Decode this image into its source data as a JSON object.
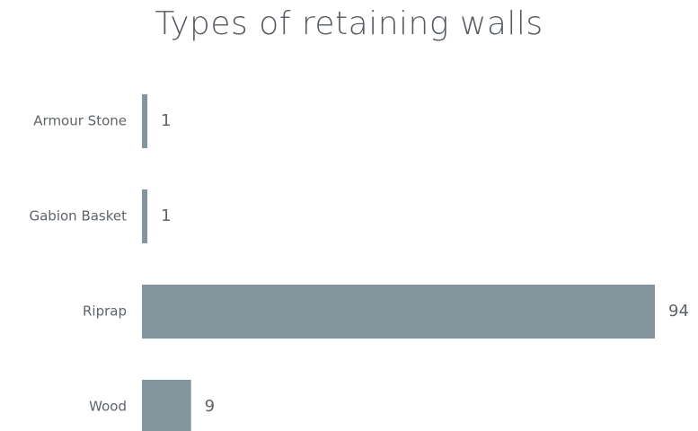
{
  "chart_data": {
    "type": "bar",
    "orientation": "horizontal",
    "title": "Types of retaining walls",
    "categories": [
      "Armour Stone",
      "Gabion Basket",
      "Riprap",
      "Wood"
    ],
    "values": [
      1,
      1,
      94,
      9
    ],
    "xlim": [
      0,
      94
    ],
    "data_labels": true,
    "grid": false,
    "legend": "none",
    "bar_color": "#85959d"
  }
}
